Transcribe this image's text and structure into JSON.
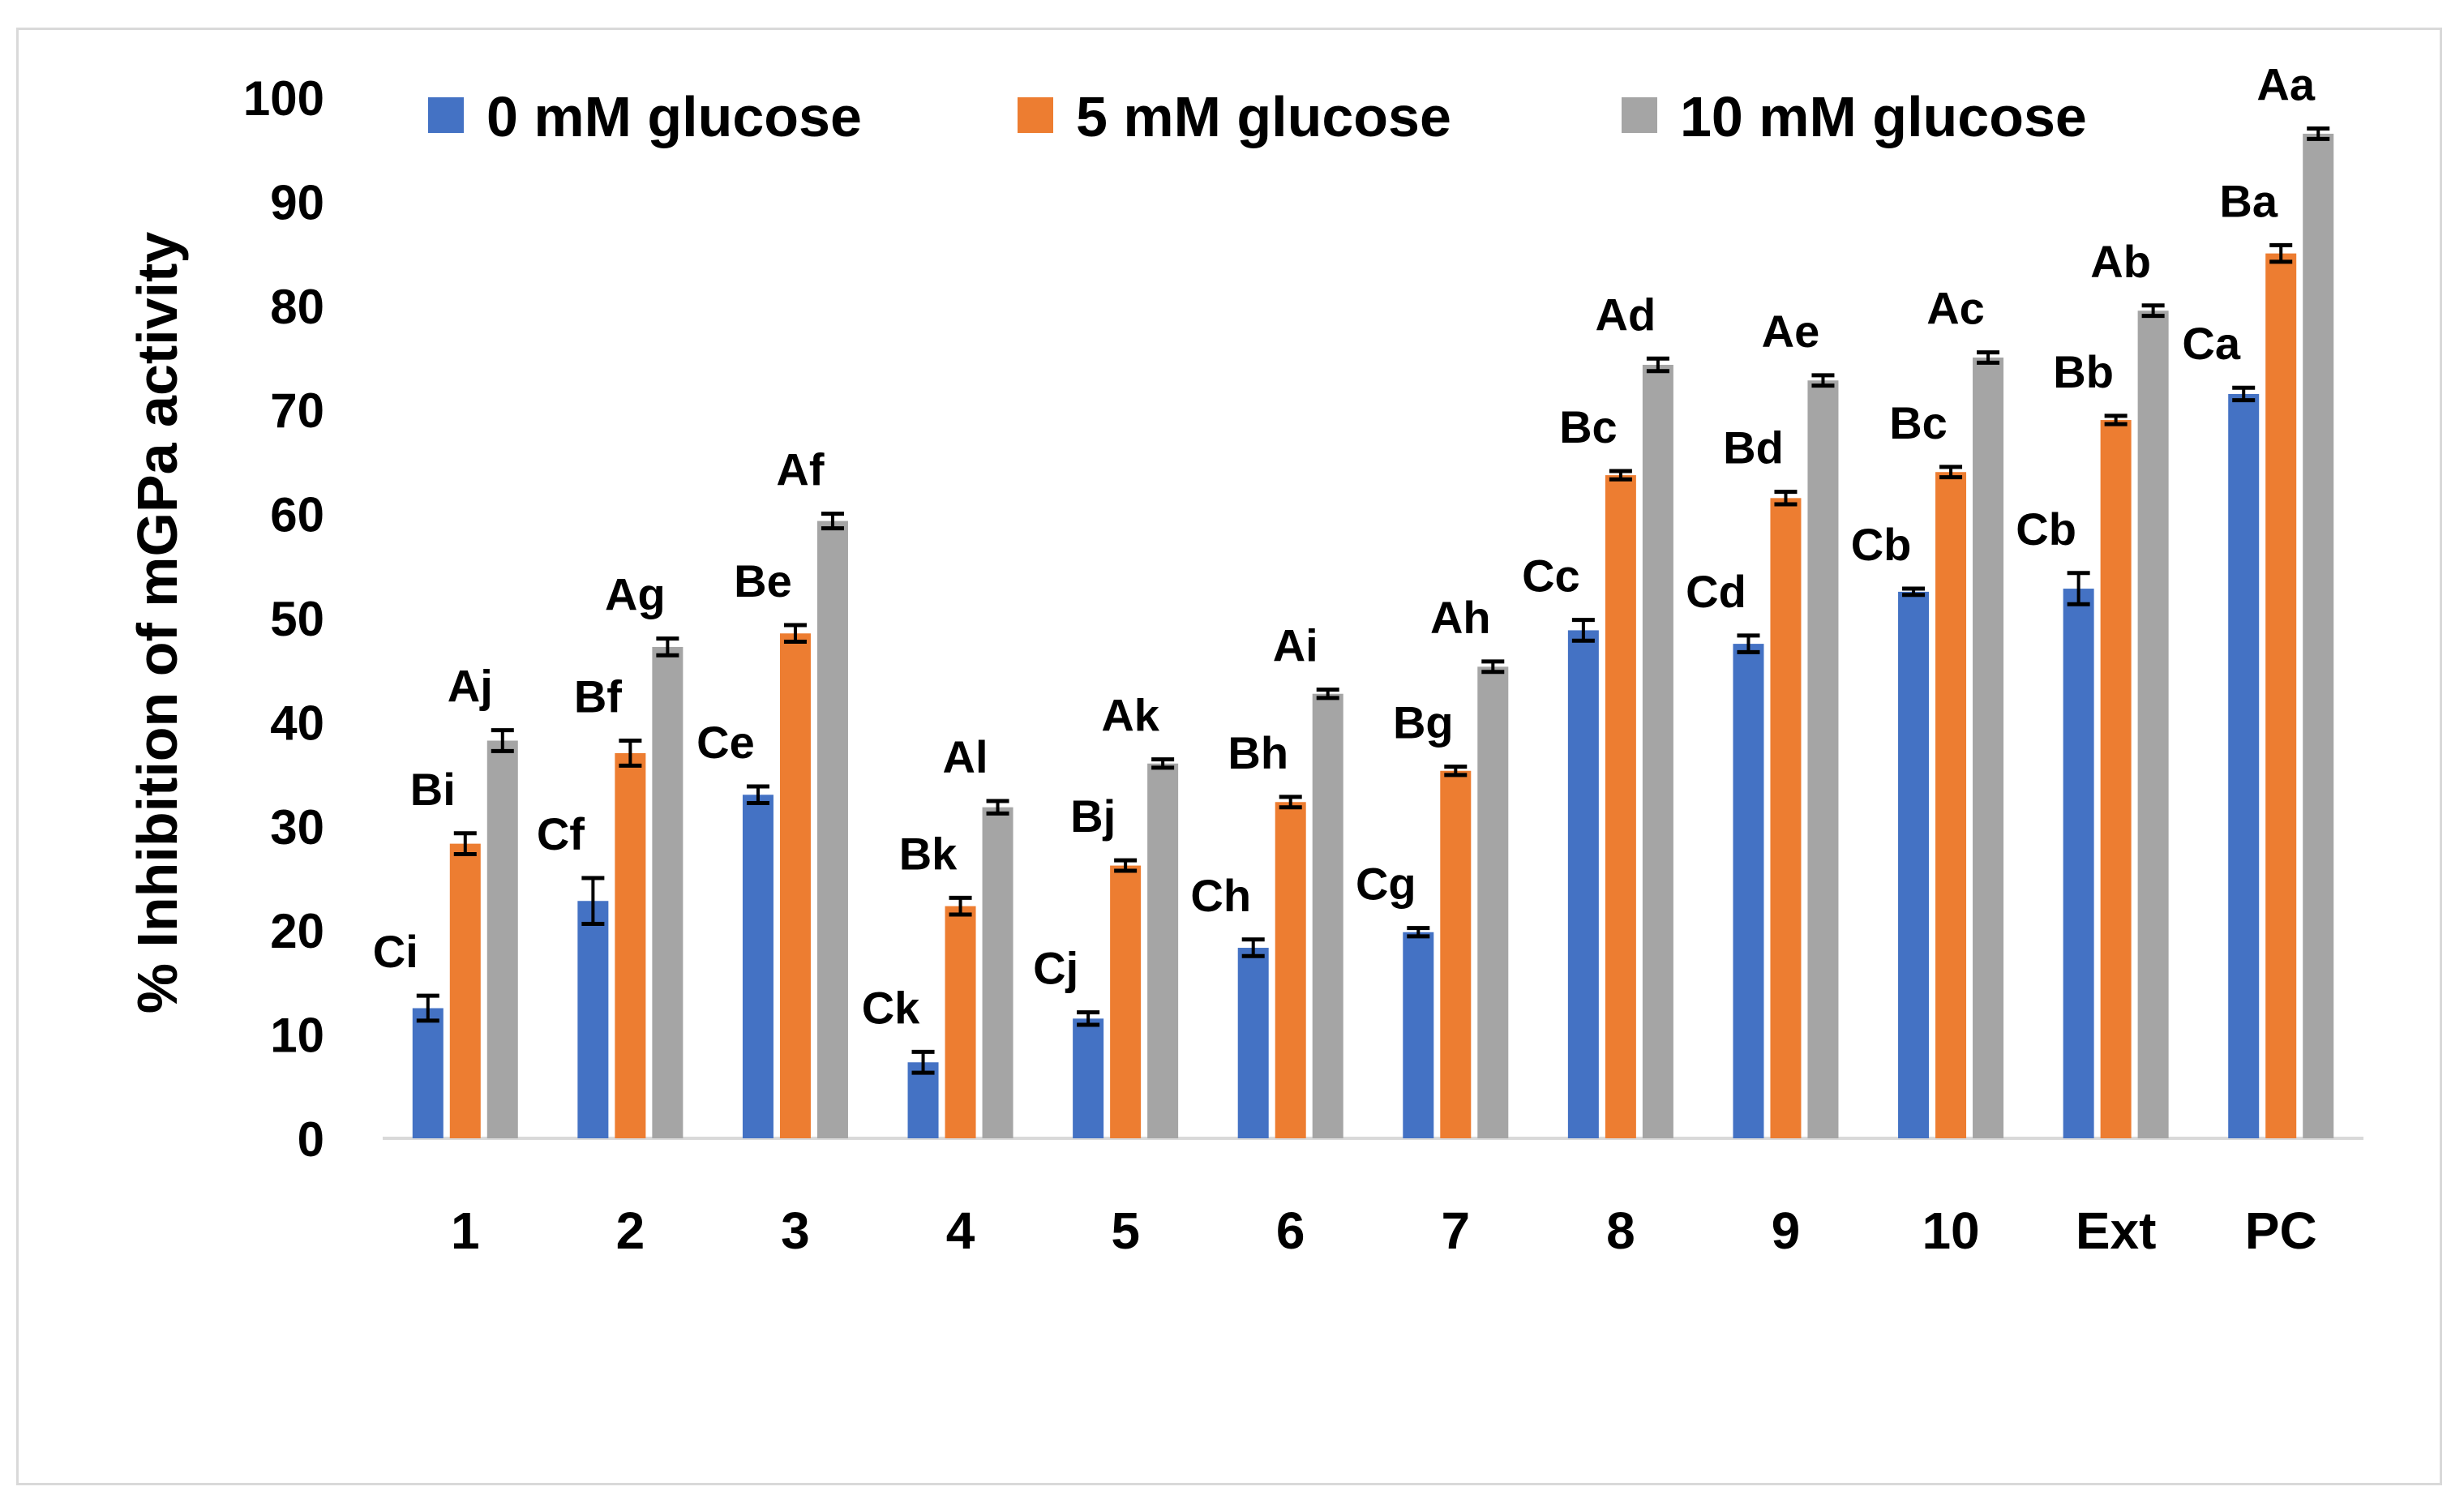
{
  "chart_data": {
    "type": "bar",
    "title": "",
    "xlabel": "",
    "ylabel": "% Inhibition of mGPa activity",
    "ylim": [
      0,
      100
    ],
    "yticks": [
      0,
      10,
      20,
      30,
      40,
      50,
      60,
      70,
      80,
      90,
      100
    ],
    "grid": false,
    "legend_position": "top",
    "categories": [
      "1",
      "2",
      "3",
      "4",
      "5",
      "6",
      "7",
      "8",
      "9",
      "10",
      "Ext",
      "PC"
    ],
    "series": [
      {
        "name": "0 mM glucose",
        "color": "#4472C4",
        "values": [
          12.5,
          22.8,
          33.0,
          7.3,
          11.5,
          18.3,
          19.8,
          48.8,
          47.5,
          52.5,
          52.8,
          71.5
        ],
        "errors": [
          1.2,
          2.2,
          0.8,
          1.0,
          0.6,
          0.8,
          0.4,
          1.0,
          0.8,
          0.3,
          1.5,
          0.6
        ],
        "letters": [
          "Ci",
          "Cf",
          "Ce",
          "Ck",
          "Cj",
          "Ch",
          "Cg",
          "Cc",
          "Cd",
          "Cb",
          "Cb",
          "Ca"
        ]
      },
      {
        "name": "5 mM glucose",
        "color": "#ED7D31",
        "values": [
          28.3,
          37.0,
          48.5,
          22.3,
          26.2,
          32.3,
          35.3,
          63.7,
          61.5,
          64.0,
          69.0,
          85.0
        ],
        "errors": [
          1.0,
          1.2,
          0.8,
          0.8,
          0.5,
          0.5,
          0.4,
          0.4,
          0.6,
          0.5,
          0.4,
          0.8
        ],
        "letters": [
          "Bi",
          "Bf",
          "Be",
          "Bk",
          "Bj",
          "Bh",
          "Bg",
          "Bc",
          "Bd",
          "Bc",
          "Bb",
          "Ba"
        ]
      },
      {
        "name": "10 mM glucose",
        "color": "#A5A5A5",
        "values": [
          38.2,
          47.2,
          59.3,
          31.8,
          36.0,
          42.7,
          45.3,
          74.3,
          72.8,
          75.0,
          79.5,
          96.5
        ],
        "errors": [
          1.0,
          0.8,
          0.7,
          0.6,
          0.4,
          0.4,
          0.5,
          0.6,
          0.5,
          0.5,
          0.5,
          0.5
        ],
        "letters": [
          "Aj",
          "Ag",
          "Af",
          "Al",
          "Ak",
          "Ai",
          "Ah",
          "Ad",
          "Ae",
          "Ac",
          "Ab",
          "Aa"
        ]
      }
    ]
  }
}
